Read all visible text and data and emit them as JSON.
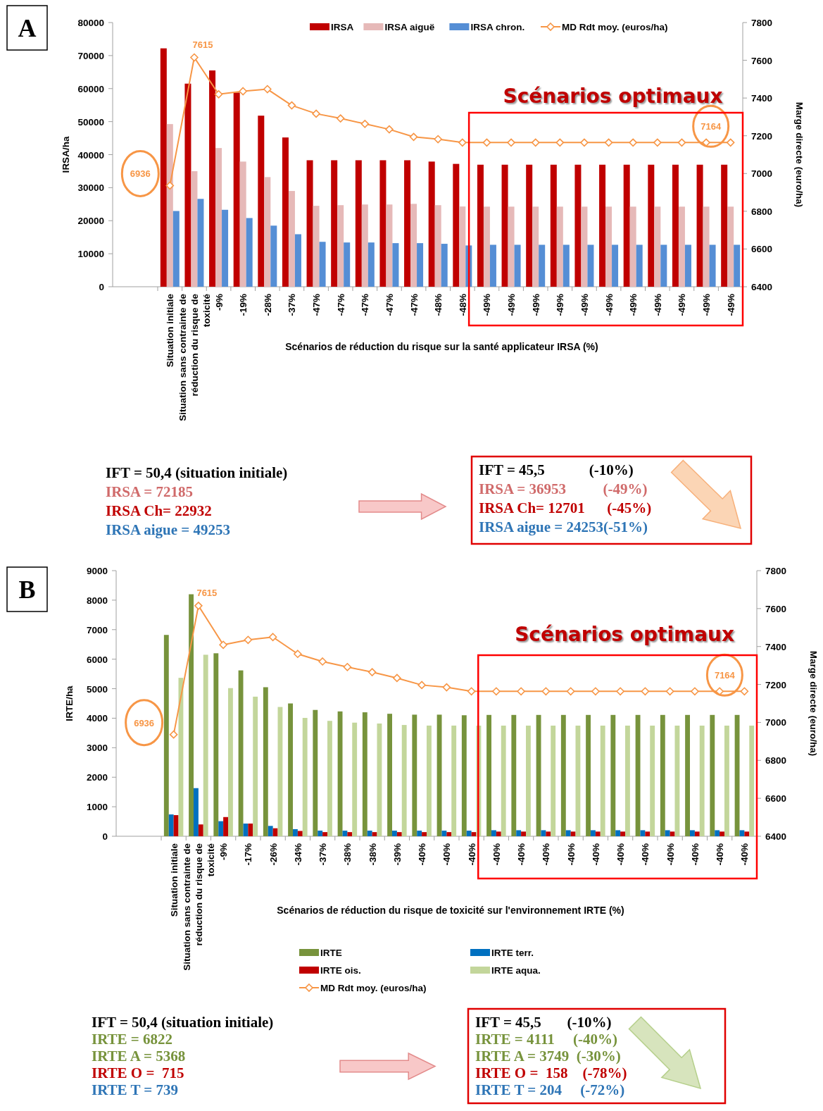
{
  "chart_data": [
    {
      "type": "bar",
      "title": "A",
      "categories": [
        "Situation initiale",
        "Situation sans contrainte de réduction du risque de toxicité",
        "-9%",
        "-19%",
        "-28%",
        "-37%",
        "-47%",
        "-47%",
        "-47%",
        "-47%",
        "-47%",
        "-48%",
        "-48%",
        "-49%",
        "-49%",
        "-49%",
        "-49%",
        "-49%",
        "-49%",
        "-49%",
        "-49%",
        "-49%",
        "-49%",
        "-49%"
      ],
      "series": [
        {
          "name": "IRSA",
          "color": "#c00000",
          "values": [
            72185,
            61500,
            65500,
            58800,
            51800,
            45200,
            38300,
            38300,
            38300,
            38300,
            38300,
            37900,
            37200,
            36953,
            36953,
            36953,
            36953,
            36953,
            36953,
            36953,
            36953,
            36953,
            36953,
            36953
          ]
        },
        {
          "name": "IRSA aiguë",
          "color": "#e6b9b8",
          "values": [
            49253,
            35000,
            42000,
            37900,
            33200,
            29000,
            24500,
            24700,
            24900,
            24900,
            25100,
            24700,
            24300,
            24253,
            24253,
            24253,
            24253,
            24253,
            24253,
            24253,
            24253,
            24253,
            24253,
            24253
          ]
        },
        {
          "name": "IRSA chron.",
          "color": "#558ed5",
          "values": [
            22932,
            26600,
            23300,
            20800,
            18500,
            15900,
            13600,
            13400,
            13400,
            13200,
            13200,
            13000,
            12500,
            12701,
            12701,
            12701,
            12701,
            12701,
            12701,
            12701,
            12701,
            12701,
            12701,
            12701
          ]
        },
        {
          "name": "MD Rdt moy. (euros/ha)",
          "type": "line",
          "axis": "y2",
          "color": "#f79646",
          "marker": "diamond",
          "values": [
            6936,
            7615,
            7420,
            7436,
            7447,
            7361,
            7317,
            7292,
            7263,
            7234,
            7194,
            7182,
            7164,
            7164,
            7164,
            7164,
            7164,
            7164,
            7164,
            7164,
            7164,
            7164,
            7164,
            7164
          ],
          "value_labels": [
            "6936",
            "7615",
            null,
            null,
            null,
            null,
            null,
            null,
            null,
            null,
            null,
            null,
            null,
            null,
            null,
            null,
            null,
            null,
            null,
            null,
            null,
            null,
            null,
            "7164"
          ]
        }
      ],
      "ylim": [
        0,
        80000
      ],
      "yticks": [
        0,
        10000,
        20000,
        30000,
        40000,
        50000,
        60000,
        70000,
        80000
      ],
      "y2lim": [
        6400,
        7800
      ],
      "y2ticks": [
        6400,
        6600,
        6800,
        7000,
        7200,
        7400,
        7600,
        7800
      ],
      "ylabel": "IRSA/ha",
      "y2label": "Marge directe (euro/ha)",
      "xlabel": "Scénarios de réduction du risque sur la santé applicateur IRSA (%)",
      "legend": "top",
      "grid": false,
      "annotations": [
        "Scénarios optimaux",
        "IFT = 50,4 (situation initiale)",
        "IRSA = 72185",
        "IRSA Ch= 22932",
        "IRSA aigue = 49253",
        "IFT = 45,5            (-10%)",
        "IRSA = 36953          (-49%)",
        "IRSA Ch= 12701      (-45%)",
        "IRSA aigue = 24253(-51%)"
      ]
    },
    {
      "type": "bar",
      "title": "B",
      "categories": [
        "Situation initiale",
        "Situation sans contrainte de réduction du risque de toxicité",
        "-9%",
        "-17%",
        "-26%",
        "-34%",
        "-37%",
        "-38%",
        "-38%",
        "-39%",
        "-40%",
        "-40%",
        "-40%",
        "-40%",
        "-40%",
        "-40%",
        "-40%",
        "-40%",
        "-40%",
        "-40%",
        "-40%",
        "-40%",
        "-40%",
        "-40%"
      ],
      "series": [
        {
          "name": "IRTE",
          "color": "#77933c",
          "values": [
            6822,
            8200,
            6200,
            5620,
            5050,
            4500,
            4280,
            4230,
            4200,
            4150,
            4120,
            4120,
            4100,
            4111,
            4111,
            4111,
            4111,
            4111,
            4111,
            4111,
            4111,
            4111,
            4111,
            4111
          ]
        },
        {
          "name": "IRTE terr.",
          "color": "#0070c0",
          "values": [
            739,
            1630,
            510,
            430,
            350,
            240,
            190,
            190,
            190,
            190,
            190,
            190,
            190,
            204,
            204,
            204,
            204,
            204,
            204,
            204,
            204,
            204,
            204,
            204
          ]
        },
        {
          "name": "IRTE ois.",
          "color": "#c00000",
          "values": [
            715,
            400,
            650,
            430,
            270,
            180,
            140,
            140,
            140,
            140,
            140,
            140,
            140,
            158,
            158,
            158,
            158,
            158,
            158,
            158,
            158,
            158,
            158,
            158
          ]
        },
        {
          "name": "IRTE aqua.",
          "color": "#c3d69b",
          "values": [
            5368,
            6150,
            5020,
            4730,
            4380,
            4010,
            3910,
            3850,
            3820,
            3770,
            3750,
            3750,
            3749,
            3749,
            3749,
            3749,
            3749,
            3749,
            3749,
            3749,
            3749,
            3749,
            3749,
            3749
          ]
        },
        {
          "name": "MD Rdt moy. (euros/ha)",
          "type": "line",
          "axis": "y2",
          "color": "#f79646",
          "marker": "diamond",
          "values": [
            6936,
            7615,
            7409,
            7435,
            7450,
            7361,
            7321,
            7292,
            7265,
            7234,
            7197,
            7185,
            7164,
            7164,
            7164,
            7164,
            7164,
            7164,
            7164,
            7164,
            7164,
            7164,
            7164,
            7164
          ],
          "value_labels": [
            "6936",
            "7615",
            null,
            null,
            null,
            null,
            null,
            null,
            null,
            null,
            null,
            null,
            null,
            null,
            null,
            null,
            null,
            null,
            null,
            null,
            null,
            null,
            null,
            "7164"
          ]
        }
      ],
      "ylim": [
        0,
        9000
      ],
      "yticks": [
        0,
        1000,
        2000,
        3000,
        4000,
        5000,
        6000,
        7000,
        8000,
        9000
      ],
      "y2lim": [
        6400,
        7800
      ],
      "y2ticks": [
        6400,
        6600,
        6800,
        7000,
        7200,
        7400,
        7600,
        7800
      ],
      "ylabel": "IRTE/ha",
      "y2label": "Marge directe (euro/ha)",
      "xlabel": "Scénarios de réduction du risque de toxicité sur l'environnement IRTE (%)",
      "legend": "bottom",
      "grid": false,
      "annotations": [
        "Scénarios optimaux",
        "IFT = 50,4 (situation initiale)",
        "IRTE = 6822",
        "IRTE A = 5368",
        "IRTE O =  715",
        "IRTE T = 739",
        "IFT = 45,5       (-10%)",
        "IRTE = 4111     (-40%)",
        "IRTE A = 3749  (-30%)",
        "IRTE O =  158    (-78%)",
        "IRTE T = 204     (-72%)"
      ]
    }
  ]
}
